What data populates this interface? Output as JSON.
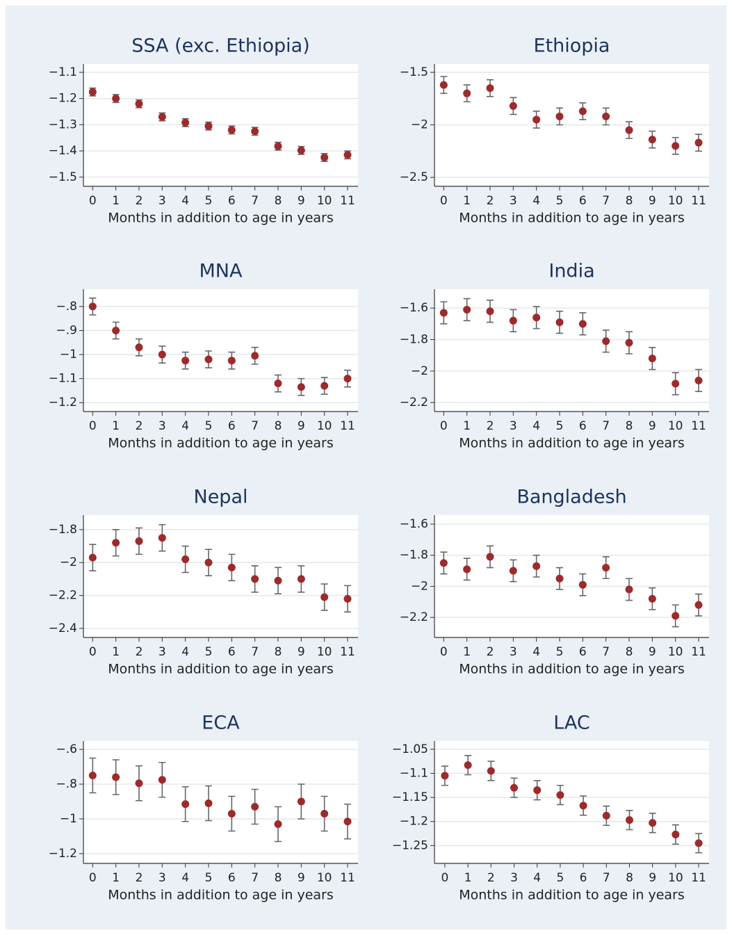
{
  "chart_data": [
    {
      "type": "errorbar",
      "title": "SSA (exc. Ethiopia)",
      "xlabel": "Months in addition to age in years",
      "x": [
        0,
        1,
        2,
        3,
        4,
        5,
        6,
        7,
        8,
        9,
        10,
        11
      ],
      "values": [
        -1.175,
        -1.2,
        -1.22,
        -1.27,
        -1.292,
        -1.305,
        -1.32,
        -1.325,
        -1.382,
        -1.398,
        -1.425,
        -1.415
      ],
      "errors": [
        0.015,
        0.015,
        0.015,
        0.015,
        0.015,
        0.015,
        0.015,
        0.015,
        0.015,
        0.015,
        0.015,
        0.015
      ],
      "color": "#9e2a2b",
      "xlim": [
        -0.4,
        11.45
      ],
      "xticks": [
        0,
        1,
        2,
        3,
        4,
        5,
        6,
        7,
        8,
        9,
        10,
        11
      ],
      "ylim": [
        -1.535,
        -1.068
      ],
      "yticks": [
        {
          "value": -1.1,
          "label": "−1.1"
        },
        {
          "value": -1.2,
          "label": "−1.2"
        },
        {
          "value": -1.3,
          "label": "−1.3"
        },
        {
          "value": -1.4,
          "label": "−1.4"
        },
        {
          "value": -1.5,
          "label": "−1.5"
        }
      ],
      "grid": true
    },
    {
      "type": "errorbar",
      "title": "Ethiopia",
      "xlabel": "Months in addition to age in years",
      "x": [
        0,
        1,
        2,
        3,
        4,
        5,
        6,
        7,
        8,
        9,
        10,
        11
      ],
      "values": [
        -1.62,
        -1.7,
        -1.65,
        -1.82,
        -1.95,
        -1.92,
        -1.87,
        -1.92,
        -2.05,
        -2.14,
        -2.2,
        -2.17
      ],
      "errors": [
        0.08,
        0.08,
        0.08,
        0.08,
        0.08,
        0.08,
        0.08,
        0.08,
        0.08,
        0.08,
        0.08,
        0.08
      ],
      "color": "#9e2a2b",
      "xlim": [
        -0.4,
        11.45
      ],
      "xticks": [
        0,
        1,
        2,
        3,
        4,
        5,
        6,
        7,
        8,
        9,
        10,
        11
      ],
      "ylim": [
        -2.585,
        -1.42
      ],
      "yticks": [
        {
          "value": -1.5,
          "label": "−1.5"
        },
        {
          "value": -2,
          "label": "−2"
        },
        {
          "value": -2.5,
          "label": "−2.5"
        }
      ],
      "grid": true
    },
    {
      "type": "errorbar",
      "title": "MNA",
      "xlabel": "Months in addition to age in years",
      "x": [
        0,
        1,
        2,
        3,
        4,
        5,
        6,
        7,
        8,
        9,
        10,
        11
      ],
      "values": [
        -0.8,
        -0.9,
        -0.97,
        -1.0,
        -1.025,
        -1.02,
        -1.025,
        -1.005,
        -1.12,
        -1.135,
        -1.13,
        -1.1
      ],
      "errors": [
        0.035,
        0.035,
        0.035,
        0.035,
        0.035,
        0.035,
        0.035,
        0.035,
        0.035,
        0.035,
        0.035,
        0.035
      ],
      "color": "#9e2a2b",
      "xlim": [
        -0.4,
        11.45
      ],
      "xticks": [
        0,
        1,
        2,
        3,
        4,
        5,
        6,
        7,
        8,
        9,
        10,
        11
      ],
      "ylim": [
        -1.237,
        -0.728
      ],
      "yticks": [
        {
          "value": -0.8,
          "label": "−.8"
        },
        {
          "value": -0.9,
          "label": "−.9"
        },
        {
          "value": -1,
          "label": "−1"
        },
        {
          "value": -1.1,
          "label": "−1.1"
        },
        {
          "value": -1.2,
          "label": "−1.2"
        }
      ],
      "grid": true
    },
    {
      "type": "errorbar",
      "title": "India",
      "xlabel": "Months in addition to age in years",
      "x": [
        0,
        1,
        2,
        3,
        4,
        5,
        6,
        7,
        8,
        9,
        10,
        11
      ],
      "values": [
        -1.63,
        -1.61,
        -1.62,
        -1.68,
        -1.66,
        -1.69,
        -1.7,
        -1.81,
        -1.82,
        -1.92,
        -2.08,
        -2.06
      ],
      "errors": [
        0.07,
        0.07,
        0.07,
        0.07,
        0.07,
        0.07,
        0.07,
        0.07,
        0.07,
        0.07,
        0.07,
        0.07
      ],
      "color": "#9e2a2b",
      "xlim": [
        -0.4,
        11.45
      ],
      "xticks": [
        0,
        1,
        2,
        3,
        4,
        5,
        6,
        7,
        8,
        9,
        10,
        11
      ],
      "ylim": [
        -2.257,
        -1.48
      ],
      "yticks": [
        {
          "value": -1.6,
          "label": "−1.6"
        },
        {
          "value": -1.8,
          "label": "−1.8"
        },
        {
          "value": -2,
          "label": "−2"
        },
        {
          "value": -2.2,
          "label": "−2.2"
        }
      ],
      "grid": true
    },
    {
      "type": "errorbar",
      "title": "Nepal",
      "xlabel": "Months in addition to age in years",
      "x": [
        0,
        1,
        2,
        3,
        4,
        5,
        6,
        7,
        8,
        9,
        10,
        11
      ],
      "values": [
        -1.97,
        -1.88,
        -1.87,
        -1.85,
        -1.98,
        -2.0,
        -2.03,
        -2.1,
        -2.11,
        -2.1,
        -2.21,
        -2.22
      ],
      "errors": [
        0.08,
        0.08,
        0.08,
        0.08,
        0.08,
        0.08,
        0.08,
        0.08,
        0.08,
        0.08,
        0.08,
        0.08
      ],
      "color": "#9e2a2b",
      "xlim": [
        -0.4,
        11.45
      ],
      "xticks": [
        0,
        1,
        2,
        3,
        4,
        5,
        6,
        7,
        8,
        9,
        10,
        11
      ],
      "ylim": [
        -2.455,
        -1.712
      ],
      "yticks": [
        {
          "value": -1.8,
          "label": "−1.8"
        },
        {
          "value": -2,
          "label": "−2"
        },
        {
          "value": -2.2,
          "label": "−2.2"
        },
        {
          "value": -2.4,
          "label": "−2.4"
        }
      ],
      "grid": true
    },
    {
      "type": "errorbar",
      "title": "Bangladesh",
      "xlabel": "Months in addition to age in years",
      "x": [
        0,
        1,
        2,
        3,
        4,
        5,
        6,
        7,
        8,
        9,
        10,
        11
      ],
      "values": [
        -1.85,
        -1.89,
        -1.81,
        -1.9,
        -1.87,
        -1.95,
        -1.99,
        -1.88,
        -2.02,
        -2.08,
        -2.19,
        -2.12
      ],
      "errors": [
        0.07,
        0.07,
        0.07,
        0.07,
        0.07,
        0.07,
        0.07,
        0.07,
        0.07,
        0.07,
        0.07,
        0.07
      ],
      "color": "#9e2a2b",
      "xlim": [
        -0.4,
        11.45
      ],
      "xticks": [
        0,
        1,
        2,
        3,
        4,
        5,
        6,
        7,
        8,
        9,
        10,
        11
      ],
      "ylim": [
        -2.329,
        -1.542
      ],
      "yticks": [
        {
          "value": -1.6,
          "label": "−1.6"
        },
        {
          "value": -1.8,
          "label": "−1.8"
        },
        {
          "value": -2,
          "label": "−2"
        },
        {
          "value": -2.2,
          "label": "−2.2"
        }
      ],
      "grid": true
    },
    {
      "type": "errorbar",
      "title": "ECA",
      "xlabel": "Months in addition to age in years",
      "x": [
        0,
        1,
        2,
        3,
        4,
        5,
        6,
        7,
        8,
        9,
        10,
        11
      ],
      "values": [
        -0.75,
        -0.76,
        -0.795,
        -0.775,
        -0.915,
        -0.91,
        -0.97,
        -0.93,
        -1.03,
        -0.9,
        -0.97,
        -1.015
      ],
      "errors": [
        0.1,
        0.1,
        0.1,
        0.1,
        0.1,
        0.1,
        0.1,
        0.1,
        0.1,
        0.1,
        0.1,
        0.1
      ],
      "color": "#9e2a2b",
      "xlim": [
        -0.4,
        11.45
      ],
      "xticks": [
        0,
        1,
        2,
        3,
        4,
        5,
        6,
        7,
        8,
        9,
        10,
        11
      ],
      "ylim": [
        -1.256,
        -0.552
      ],
      "yticks": [
        {
          "value": -0.6,
          "label": "−.6"
        },
        {
          "value": -0.8,
          "label": "−.8"
        },
        {
          "value": -1,
          "label": "−1"
        },
        {
          "value": -1.2,
          "label": "−1.2"
        }
      ],
      "grid": true
    },
    {
      "type": "errorbar",
      "title": "LAC",
      "xlabel": "Months in addition to age in years",
      "x": [
        0,
        1,
        2,
        3,
        4,
        5,
        6,
        7,
        8,
        9,
        10,
        11
      ],
      "values": [
        -1.105,
        -1.083,
        -1.095,
        -1.13,
        -1.135,
        -1.145,
        -1.167,
        -1.188,
        -1.197,
        -1.203,
        -1.227,
        -1.245
      ],
      "errors": [
        0.02,
        0.02,
        0.02,
        0.02,
        0.02,
        0.02,
        0.02,
        0.02,
        0.02,
        0.02,
        0.02,
        0.02
      ],
      "color": "#9e2a2b",
      "xlim": [
        -0.45,
        11.45
      ],
      "xticks": [
        0,
        1,
        2,
        3,
        4,
        5,
        6,
        7,
        8,
        9,
        10,
        11
      ],
      "ylim": [
        -1.287,
        -1.033
      ],
      "yticks": [
        {
          "value": -1.05,
          "label": "−1.05"
        },
        {
          "value": -1.1,
          "label": "−1.1"
        },
        {
          "value": -1.15,
          "label": "−1.15"
        },
        {
          "value": -1.2,
          "label": "−1.2"
        },
        {
          "value": -1.25,
          "label": "−1.25"
        }
      ],
      "grid": true
    }
  ]
}
